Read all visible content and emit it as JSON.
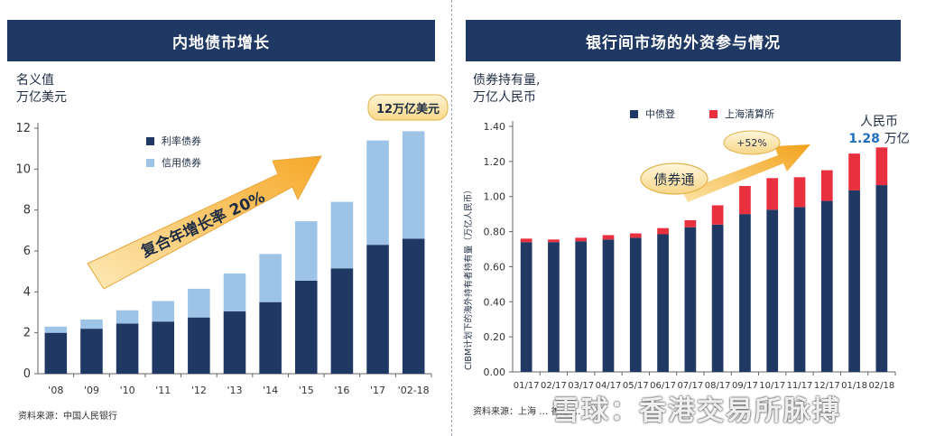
{
  "left": {
    "header": "内地债市增长",
    "unit_line1": "名义值",
    "unit_line2": "万亿美元",
    "callout": "12万亿美元",
    "arrow_text_prefix": "复合年增长率",
    "arrow_text_value": "20%",
    "source": "资料来源：中国人民银行"
  },
  "right": {
    "header": "银行间市场的外资参与情况",
    "unit_line1": "债券持有量,",
    "unit_line2": "万亿人民币",
    "ylabel": "CIBM计划下的海外持有者持有量（万亿人民币）",
    "growth_label": "+52%",
    "bond_connect_label": "债券通",
    "total_label_line1": "人民币",
    "total_label_value": "1.28",
    "total_label_unit": "万亿",
    "source": "资料来源：上海 … 香港 …"
  },
  "watermark": "雪球：香港交易所脉搏",
  "colors": {
    "dark": "#1f3864",
    "light": "#9dc3e6",
    "red": "#e8303e",
    "header": "#1f3864",
    "arrow": "#f6b53f"
  },
  "chart_data": [
    {
      "type": "bar",
      "stacked": true,
      "title": "内地债市增长",
      "ylabel": "名义值 万亿美元",
      "xlabel": "",
      "ylim": [
        0,
        12
      ],
      "yticks": [
        0,
        2,
        4,
        6,
        8,
        10,
        12
      ],
      "categories": [
        "'08",
        "'09",
        "'10",
        "'11",
        "'12",
        "'13",
        "'14",
        "'15",
        "'16",
        "'17",
        "'02-18"
      ],
      "series": [
        {
          "name": "利率债券",
          "color": "#1f3864",
          "values": [
            2.0,
            2.2,
            2.45,
            2.55,
            2.75,
            3.05,
            3.5,
            4.55,
            5.15,
            6.3,
            6.6
          ]
        },
        {
          "name": "信用债券",
          "color": "#9dc3e6",
          "values": [
            0.3,
            0.45,
            0.65,
            1.0,
            1.4,
            1.85,
            2.35,
            2.9,
            3.25,
            5.1,
            5.25
          ]
        }
      ],
      "legend": "top-center",
      "grid": false
    },
    {
      "type": "bar",
      "stacked": true,
      "title": "银行间市场的外资参与情况",
      "ylabel": "CIBM计划下的海外持有者持有量（万亿人民币）",
      "xlabel": "",
      "ylim": [
        0,
        1.4
      ],
      "yticks": [
        "0.00",
        "0.20",
        "0.40",
        "0.60",
        "0.80",
        "1.00",
        "1.20",
        "1.40"
      ],
      "categories": [
        "01/17",
        "02/17",
        "03/17",
        "04/17",
        "05/17",
        "06/17",
        "07/17",
        "08/17",
        "09/17",
        "10/17",
        "11/17",
        "12/17",
        "01/18",
        "02/18"
      ],
      "series": [
        {
          "name": "中债登",
          "color": "#1f3864",
          "values": [
            0.74,
            0.74,
            0.745,
            0.755,
            0.765,
            0.785,
            0.825,
            0.84,
            0.9,
            0.925,
            0.94,
            0.975,
            1.035,
            1.065
          ]
        },
        {
          "name": "上海清算所",
          "color": "#e8303e",
          "values": [
            0.02,
            0.015,
            0.02,
            0.025,
            0.025,
            0.035,
            0.04,
            0.11,
            0.16,
            0.18,
            0.17,
            0.175,
            0.21,
            0.215
          ]
        }
      ],
      "legend": "top-left",
      "grid": false
    }
  ]
}
